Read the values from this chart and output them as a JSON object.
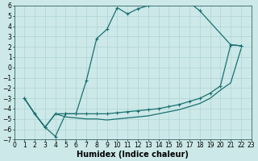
{
  "xlabel": "Humidex (Indice chaleur)",
  "bg_color": "#cce8e8",
  "line_color": "#1a7070",
  "grid_color": "#b0d4d4",
  "xlim": [
    0,
    23
  ],
  "ylim": [
    -7,
    6
  ],
  "xticks": [
    0,
    1,
    2,
    3,
    4,
    5,
    6,
    7,
    8,
    9,
    10,
    11,
    12,
    13,
    14,
    15,
    16,
    17,
    18,
    19,
    20,
    21,
    22,
    23
  ],
  "yticks": [
    -7,
    -6,
    -5,
    -4,
    -3,
    -2,
    -1,
    0,
    1,
    2,
    3,
    4,
    5,
    6
  ],
  "curve1_x": [
    1,
    2,
    3,
    4,
    5,
    6,
    7,
    8,
    9,
    10,
    11,
    12,
    13,
    14,
    15,
    16,
    17,
    18,
    21,
    22
  ],
  "curve1_y": [
    -3,
    -4.5,
    -5.8,
    -6.7,
    -4.5,
    -4.5,
    -1.3,
    2.8,
    3.7,
    5.8,
    5.2,
    5.7,
    6.0,
    6.2,
    6.5,
    6.5,
    6.3,
    5.5,
    2.2,
    2.1
  ],
  "curve2_x": [
    1,
    2,
    3,
    4,
    5,
    6,
    7,
    8,
    9,
    10,
    11,
    12,
    13,
    14,
    15,
    16,
    17,
    18,
    19,
    20,
    21,
    22
  ],
  "curve2_y": [
    -3,
    -4.5,
    -5.8,
    -4.5,
    -4.5,
    -4.5,
    -4.5,
    -4.5,
    -4.5,
    -4.4,
    -4.3,
    -4.2,
    -4.1,
    -4.0,
    -3.8,
    -3.6,
    -3.3,
    -3.0,
    -2.5,
    -1.8,
    2.2,
    2.1
  ],
  "curve3_x": [
    1,
    2,
    3,
    4,
    5,
    6,
    7,
    8,
    9,
    10,
    11,
    12,
    13,
    14,
    15,
    16,
    17,
    18,
    19,
    20,
    21,
    22
  ],
  "curve3_y": [
    -3,
    -4.5,
    -5.8,
    -4.5,
    -4.8,
    -4.9,
    -5.0,
    -5.0,
    -5.1,
    -5.0,
    -4.9,
    -4.8,
    -4.7,
    -4.5,
    -4.3,
    -4.1,
    -3.8,
    -3.5,
    -3.0,
    -2.2,
    -1.5,
    1.8
  ],
  "tick_fontsize": 5.5,
  "font_size_xlabel": 7,
  "linewidth": 0.9,
  "markersize": 2.5
}
